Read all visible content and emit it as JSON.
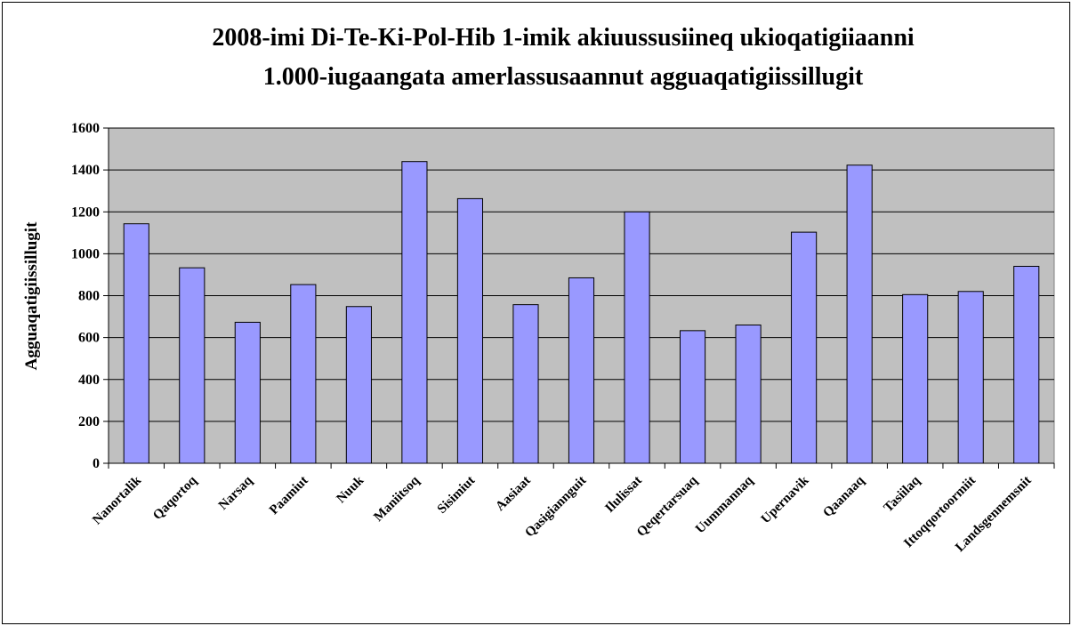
{
  "chart_data": {
    "type": "bar",
    "title": [
      "2008-imi Di-Te-Ki-Pol-Hib 1-imik akiuussusiineq ukioqatigiiaanni",
      "1.000-iugaangata amerlassusaannut agguaqatigiissillugit"
    ],
    "ylabel": "Agguaqatigiissillugit",
    "xlabel": "",
    "ylim": [
      0,
      1600
    ],
    "yticks": [
      0,
      200,
      400,
      600,
      800,
      1000,
      1200,
      1400,
      1600
    ],
    "grid": true,
    "categories": [
      "Nanortalik",
      "Qaqortoq",
      "Narsaq",
      "Paamiut",
      "Nuuk",
      "Maniitsoq",
      "Sisimiut",
      "Aasiaat",
      "Qasigiannguit",
      "Ilulissat",
      "Qeqertarsuaq",
      "Uummannaq",
      "Upernavik",
      "Qaanaaq",
      "Tasiilaq",
      "Ittoqqortoormiit",
      "Landsgennemsnit"
    ],
    "values": [
      1143,
      933,
      673,
      853,
      748,
      1440,
      1263,
      757,
      885,
      1200,
      633,
      660,
      1103,
      1423,
      805,
      820,
      940
    ],
    "colors": {
      "bar": "#9999ff",
      "plot_bg": "#c0c0c0",
      "bar_stroke": "#000000"
    }
  }
}
